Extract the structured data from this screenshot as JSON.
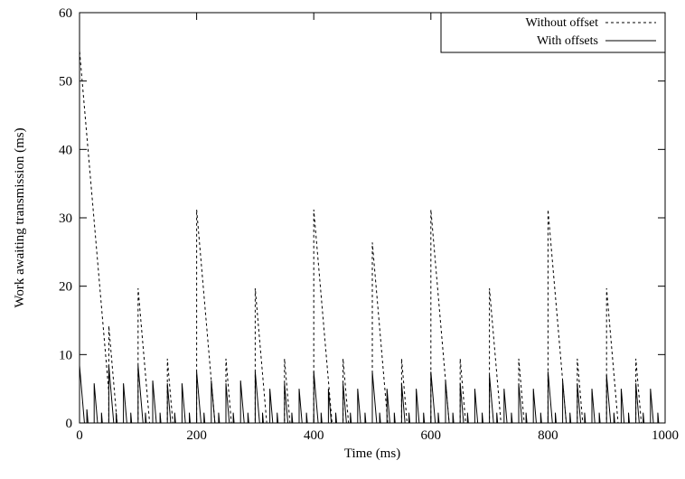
{
  "chart_data": {
    "type": "line",
    "title": "",
    "xlabel": "Time (ms)",
    "ylabel": "Work awaiting transmission (ms)",
    "xlim": [
      0,
      1000
    ],
    "ylim": [
      0,
      60
    ],
    "xticks": [
      0,
      200,
      400,
      600,
      800,
      1000
    ],
    "yticks": [
      0,
      10,
      20,
      30,
      40,
      50,
      60
    ],
    "grid": false,
    "legend_position": "top-right",
    "series": [
      {
        "name": "Without offset",
        "style": "dashed",
        "color": "#000000",
        "peaks": [
          {
            "t": 0,
            "v": 54.5
          },
          {
            "t": 50,
            "v": 14.2
          },
          {
            "t": 100,
            "v": 19.7
          },
          {
            "t": 150,
            "v": 9.4
          },
          {
            "t": 200,
            "v": 31.2
          },
          {
            "t": 250,
            "v": 9.4
          },
          {
            "t": 300,
            "v": 19.7
          },
          {
            "t": 350,
            "v": 9.4
          },
          {
            "t": 400,
            "v": 31.2
          },
          {
            "t": 450,
            "v": 9.4
          },
          {
            "t": 500,
            "v": 26.4
          },
          {
            "t": 550,
            "v": 9.4
          },
          {
            "t": 600,
            "v": 31.2
          },
          {
            "t": 650,
            "v": 9.4
          },
          {
            "t": 700,
            "v": 19.7
          },
          {
            "t": 750,
            "v": 9.4
          },
          {
            "t": 800,
            "v": 31.2
          },
          {
            "t": 850,
            "v": 9.4
          },
          {
            "t": 900,
            "v": 19.7
          },
          {
            "t": 950,
            "v": 9.4
          }
        ]
      },
      {
        "name": "With offsets",
        "style": "solid",
        "color": "#000000",
        "peaks": [
          {
            "t": 0,
            "v": 8.4
          },
          {
            "t": 12.5,
            "v": 2.0
          },
          {
            "t": 25,
            "v": 5.8
          },
          {
            "t": 37.5,
            "v": 1.5
          },
          {
            "t": 50,
            "v": 8.4
          },
          {
            "t": 62.5,
            "v": 1.5
          },
          {
            "t": 75,
            "v": 5.8
          },
          {
            "t": 87.5,
            "v": 1.5
          },
          {
            "t": 100,
            "v": 8.4
          },
          {
            "t": 112.5,
            "v": 1.5
          },
          {
            "t": 125,
            "v": 6.2
          },
          {
            "t": 137.5,
            "v": 1.5
          },
          {
            "t": 150,
            "v": 5.8
          },
          {
            "t": 162.5,
            "v": 1.5
          },
          {
            "t": 175,
            "v": 5.8
          },
          {
            "t": 187.5,
            "v": 1.5
          },
          {
            "t": 200,
            "v": 7.5
          },
          {
            "t": 212.5,
            "v": 1.5
          },
          {
            "t": 225,
            "v": 6.2
          },
          {
            "t": 237.5,
            "v": 1.5
          },
          {
            "t": 250,
            "v": 5.8
          },
          {
            "t": 262.5,
            "v": 1.5
          },
          {
            "t": 275,
            "v": 6.2
          },
          {
            "t": 287.5,
            "v": 1.5
          },
          {
            "t": 300,
            "v": 7.5
          },
          {
            "t": 312.5,
            "v": 1.5
          },
          {
            "t": 325,
            "v": 5.0
          },
          {
            "t": 337.5,
            "v": 1.5
          },
          {
            "t": 350,
            "v": 5.8
          },
          {
            "t": 362.5,
            "v": 1.5
          },
          {
            "t": 375,
            "v": 5.0
          },
          {
            "t": 387.5,
            "v": 1.5
          },
          {
            "t": 400,
            "v": 7.5
          },
          {
            "t": 412.5,
            "v": 1.5
          },
          {
            "t": 425,
            "v": 5.0
          },
          {
            "t": 437.5,
            "v": 1.5
          },
          {
            "t": 450,
            "v": 5.8
          },
          {
            "t": 462.5,
            "v": 1.5
          },
          {
            "t": 475,
            "v": 5.0
          },
          {
            "t": 487.5,
            "v": 1.5
          },
          {
            "t": 500,
            "v": 7.5
          },
          {
            "t": 512.5,
            "v": 1.5
          },
          {
            "t": 525,
            "v": 5.0
          },
          {
            "t": 537.5,
            "v": 1.5
          },
          {
            "t": 550,
            "v": 5.8
          },
          {
            "t": 562.5,
            "v": 1.5
          },
          {
            "t": 575,
            "v": 5.0
          },
          {
            "t": 587.5,
            "v": 1.5
          },
          {
            "t": 600,
            "v": 7.5
          },
          {
            "t": 612.5,
            "v": 1.5
          },
          {
            "t": 625,
            "v": 6.2
          },
          {
            "t": 637.5,
            "v": 1.5
          },
          {
            "t": 650,
            "v": 5.8
          },
          {
            "t": 662.5,
            "v": 1.5
          },
          {
            "t": 675,
            "v": 5.0
          },
          {
            "t": 687.5,
            "v": 1.5
          },
          {
            "t": 700,
            "v": 7.0
          },
          {
            "t": 712.5,
            "v": 1.5
          },
          {
            "t": 725,
            "v": 5.0
          },
          {
            "t": 737.5,
            "v": 1.5
          },
          {
            "t": 750,
            "v": 5.8
          },
          {
            "t": 762.5,
            "v": 1.5
          },
          {
            "t": 775,
            "v": 5.0
          },
          {
            "t": 787.5,
            "v": 1.5
          },
          {
            "t": 800,
            "v": 7.5
          },
          {
            "t": 812.5,
            "v": 1.5
          },
          {
            "t": 825,
            "v": 6.2
          },
          {
            "t": 837.5,
            "v": 1.5
          },
          {
            "t": 850,
            "v": 5.8
          },
          {
            "t": 862.5,
            "v": 1.5
          },
          {
            "t": 875,
            "v": 5.0
          },
          {
            "t": 887.5,
            "v": 1.5
          },
          {
            "t": 900,
            "v": 7.0
          },
          {
            "t": 912.5,
            "v": 1.5
          },
          {
            "t": 925,
            "v": 5.0
          },
          {
            "t": 937.5,
            "v": 1.5
          },
          {
            "t": 950,
            "v": 5.8
          },
          {
            "t": 962.5,
            "v": 1.5
          },
          {
            "t": 975,
            "v": 5.0
          },
          {
            "t": 987.5,
            "v": 1.5
          }
        ]
      }
    ]
  }
}
